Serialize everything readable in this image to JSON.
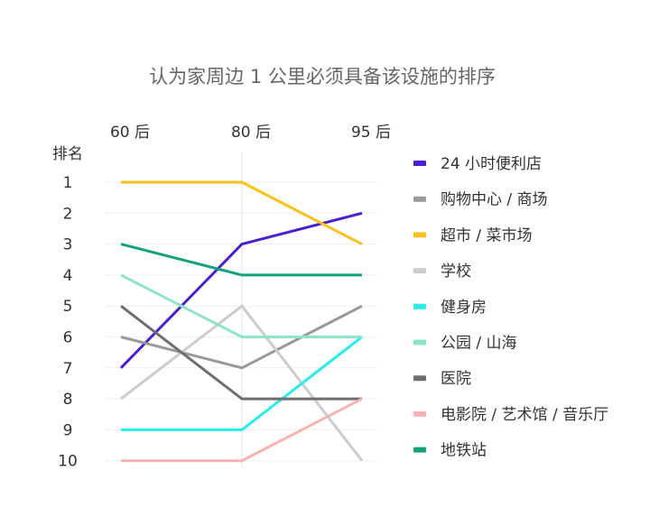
{
  "chart_data": {
    "type": "line",
    "title": "认为家周边 1 公里必须具备该设施的排序",
    "ylabel": "排名",
    "categories": [
      "60 后",
      "80 后",
      "95 后"
    ],
    "yticks": [
      1,
      2,
      3,
      4,
      5,
      6,
      7,
      8,
      9,
      10
    ],
    "ylim": [
      1,
      10
    ],
    "y_inverted": true,
    "grid": true,
    "legend_position": "right",
    "series": [
      {
        "name": "24 小时便利店",
        "color": "#4b1fd1",
        "values": [
          7,
          3,
          2
        ]
      },
      {
        "name": "购物中心 / 商场",
        "color": "#999999",
        "values": [
          6,
          7,
          5
        ]
      },
      {
        "name": "超市 / 菜市场",
        "color": "#f7c21b",
        "values": [
          1,
          1,
          3
        ]
      },
      {
        "name": "学校",
        "color": "#cccccc",
        "values": [
          8,
          5,
          10
        ]
      },
      {
        "name": "健身房",
        "color": "#29ecec",
        "values": [
          9,
          9,
          6
        ]
      },
      {
        "name": "公园 / 山海",
        "color": "#8fe3c8",
        "values": [
          4,
          6,
          6
        ]
      },
      {
        "name": "医院",
        "color": "#6e6e6e",
        "values": [
          5,
          8,
          8
        ]
      },
      {
        "name": "电影院 / 艺术馆 / 音乐厅",
        "color": "#f7b3b3",
        "values": [
          10,
          10,
          8
        ]
      },
      {
        "name": "地铁站",
        "color": "#14a27a",
        "values": [
          3,
          4,
          4
        ]
      }
    ]
  }
}
